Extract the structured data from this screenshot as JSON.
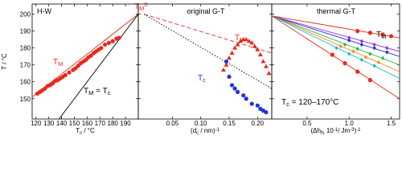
{
  "chart_data": [
    {
      "type": "scatter",
      "title": "H-W",
      "y_label": "T / °C",
      "x_label": [
        {
          "text": "T"
        },
        {
          "sub": "c"
        },
        {
          "text": " / °C"
        }
      ],
      "xlim": [
        117,
        200
      ],
      "xticks": [
        120,
        130,
        140,
        150,
        160,
        170,
        180,
        190
      ],
      "ylim": [
        138,
        206
      ],
      "yticks": [
        150,
        160,
        170,
        180,
        190,
        200
      ],
      "series": [
        {
          "marker": "circle",
          "color": "#e8291c",
          "x": [
            121,
            123,
            125,
            127,
            129,
            131,
            133,
            135,
            137,
            139,
            141,
            143,
            146,
            149,
            151,
            153,
            155,
            157,
            159,
            161,
            163,
            165,
            167,
            169,
            171,
            174,
            177,
            180,
            183,
            185
          ],
          "values": [
            153,
            154,
            155,
            156,
            157.5,
            158,
            159,
            160.5,
            161,
            162,
            163,
            164,
            165.5,
            167,
            168,
            169.5,
            171,
            172,
            173,
            174.5,
            175.5,
            177,
            178,
            179,
            180,
            182,
            183,
            184,
            185.5,
            186
          ]
        }
      ],
      "lines": [
        {
          "color": "#e8291c",
          "dash": "none",
          "x": [
            117,
            200
          ],
          "values": [
            151,
            200
          ]
        },
        {
          "color": "#000000",
          "dash": "none",
          "x": [
            138,
            200
          ],
          "values": [
            138,
            200
          ]
        }
      ],
      "annotations": [
        {
          "color": "#e8291c",
          "parts": [
            {
              "text": "T"
            },
            {
              "sub": "M"
            },
            {
              "sup": "0"
            }
          ]
        },
        {
          "color": "#e8291c",
          "parts": [
            {
              "text": "T"
            },
            {
              "sub": "M"
            }
          ]
        },
        {
          "color": "#000000",
          "parts": [
            {
              "text": "T"
            },
            {
              "sub": "M"
            },
            {
              "text": " = T"
            },
            {
              "sub": "c"
            }
          ]
        }
      ]
    },
    {
      "type": "scatter",
      "title": "original G-T",
      "x_label": [
        {
          "text": "(d"
        },
        {
          "sub": "c"
        },
        {
          "text": " / nm)"
        },
        {
          "sup": "-1"
        }
      ],
      "xlim": [
        -0.01,
        0.225
      ],
      "xticks": [
        0.05,
        0.1,
        0.15,
        0.2
      ],
      "ylim": [
        138,
        206
      ],
      "series": [
        {
          "marker": "triangle",
          "color": "#e8291c",
          "x": [
            0.14,
            0.145,
            0.15,
            0.155,
            0.16,
            0.165,
            0.17,
            0.175,
            0.18,
            0.185,
            0.19,
            0.195,
            0.2,
            0.205,
            0.21,
            0.215,
            0.22
          ],
          "values": [
            167,
            170,
            174,
            177,
            180,
            182,
            184,
            185,
            185,
            184,
            183,
            181,
            179,
            176,
            172,
            169,
            165
          ]
        },
        {
          "marker": "circle",
          "color": "#2233dd",
          "x": [
            0.145,
            0.15,
            0.155,
            0.16,
            0.165,
            0.175,
            0.18,
            0.19,
            0.2,
            0.205,
            0.21,
            0.215
          ],
          "values": [
            172,
            163,
            158,
            156,
            154,
            152,
            150,
            147,
            146,
            144,
            143,
            142
          ]
        }
      ],
      "lines": [
        {
          "color": "#e8291c",
          "dash": "5,3",
          "x": [
            0,
            0.225
          ],
          "values": [
            200,
            177
          ]
        },
        {
          "color": "#000000",
          "dash": "1.5,2",
          "x": [
            0,
            0.225
          ],
          "values": [
            200,
            156
          ]
        }
      ],
      "annotations": [
        {
          "color": "#e8291c",
          "parts": [
            {
              "text": "T"
            },
            {
              "sub": "M"
            }
          ]
        },
        {
          "color": "#2233dd",
          "parts": [
            {
              "text": "T"
            },
            {
              "sub": "c"
            }
          ]
        }
      ]
    },
    {
      "type": "scatter",
      "title": "thermal G-T",
      "x_label": [
        {
          "text": "(Δh"
        },
        {
          "sub": "fs"
        },
        {
          "text": " 10"
        },
        {
          "sup": "-1"
        },
        {
          "text": "/ Jm"
        },
        {
          "sup": "-3"
        },
        {
          "text": ")"
        },
        {
          "sup": "-1"
        }
      ],
      "xlim": [
        0.08,
        1.6
      ],
      "xticks": [
        0.5,
        1.0,
        1.5
      ],
      "ylim": [
        138,
        206
      ],
      "series": [
        {
          "marker": "circle",
          "color": "#e8291c",
          "x": [
            1.1,
            1.25,
            1.4,
            1.5
          ],
          "values": [
            190,
            189,
            188,
            187
          ]
        },
        {
          "marker": "diamond",
          "color": "#9b30d0",
          "x": [
            1.0,
            1.15,
            1.3,
            1.45
          ],
          "values": [
            186,
            184,
            182,
            180
          ]
        },
        {
          "marker": "diamond",
          "color": "#2233dd",
          "x": [
            1.0,
            1.15,
            1.3,
            1.45
          ],
          "values": [
            184.5,
            182,
            180,
            177.5
          ]
        },
        {
          "marker": "diamond",
          "color": "#3cb043",
          "x": [
            0.95,
            1.1,
            1.25,
            1.4
          ],
          "values": [
            182,
            179.5,
            176.5,
            174
          ]
        },
        {
          "marker": "diamond",
          "color": "#f08c1c",
          "x": [
            0.9,
            1.05,
            1.2,
            1.35
          ],
          "values": [
            181,
            178,
            174.5,
            171.5
          ]
        },
        {
          "marker": "diamond",
          "color": "#1fb8d6",
          "x": [
            0.85,
            1.0,
            1.15,
            1.3
          ],
          "values": [
            180,
            176.5,
            173,
            169.5
          ]
        },
        {
          "marker": "circle",
          "color": "#e8291c",
          "x": [
            0.8,
            0.95,
            1.1,
            1.25
          ],
          "values": [
            176,
            171,
            166,
            161
          ]
        }
      ],
      "lines": [
        {
          "color": "#e8291c",
          "dash": "none",
          "x": [
            0.08,
            1.6
          ],
          "values": [
            199,
            186
          ]
        },
        {
          "color": "#9b30d0",
          "dash": "none",
          "x": [
            0.08,
            1.6
          ],
          "values": [
            199,
            178
          ]
        },
        {
          "color": "#2233dd",
          "dash": "none",
          "x": [
            0.08,
            1.6
          ],
          "values": [
            199,
            175
          ]
        },
        {
          "color": "#3cb043",
          "dash": "none",
          "x": [
            0.08,
            1.6
          ],
          "values": [
            199,
            170
          ]
        },
        {
          "color": "#f08c1c",
          "dash": "none",
          "x": [
            0.08,
            1.6
          ],
          "values": [
            199,
            166
          ]
        },
        {
          "color": "#1fb8d6",
          "dash": "none",
          "x": [
            0.08,
            1.6
          ],
          "values": [
            199,
            162
          ]
        },
        {
          "color": "#e8291c",
          "dash": "none",
          "x": [
            0.08,
            1.6
          ],
          "values": [
            199,
            150
          ]
        }
      ],
      "annotations": [
        {
          "color": "#000000",
          "parts": [
            {
              "text": "T"
            },
            {
              "sub": "M"
            }
          ]
        },
        {
          "color": "#000000",
          "parts": [
            {
              "text": "T"
            },
            {
              "sub": "c"
            },
            {
              "text": " = 120–170°C"
            }
          ]
        }
      ]
    }
  ]
}
